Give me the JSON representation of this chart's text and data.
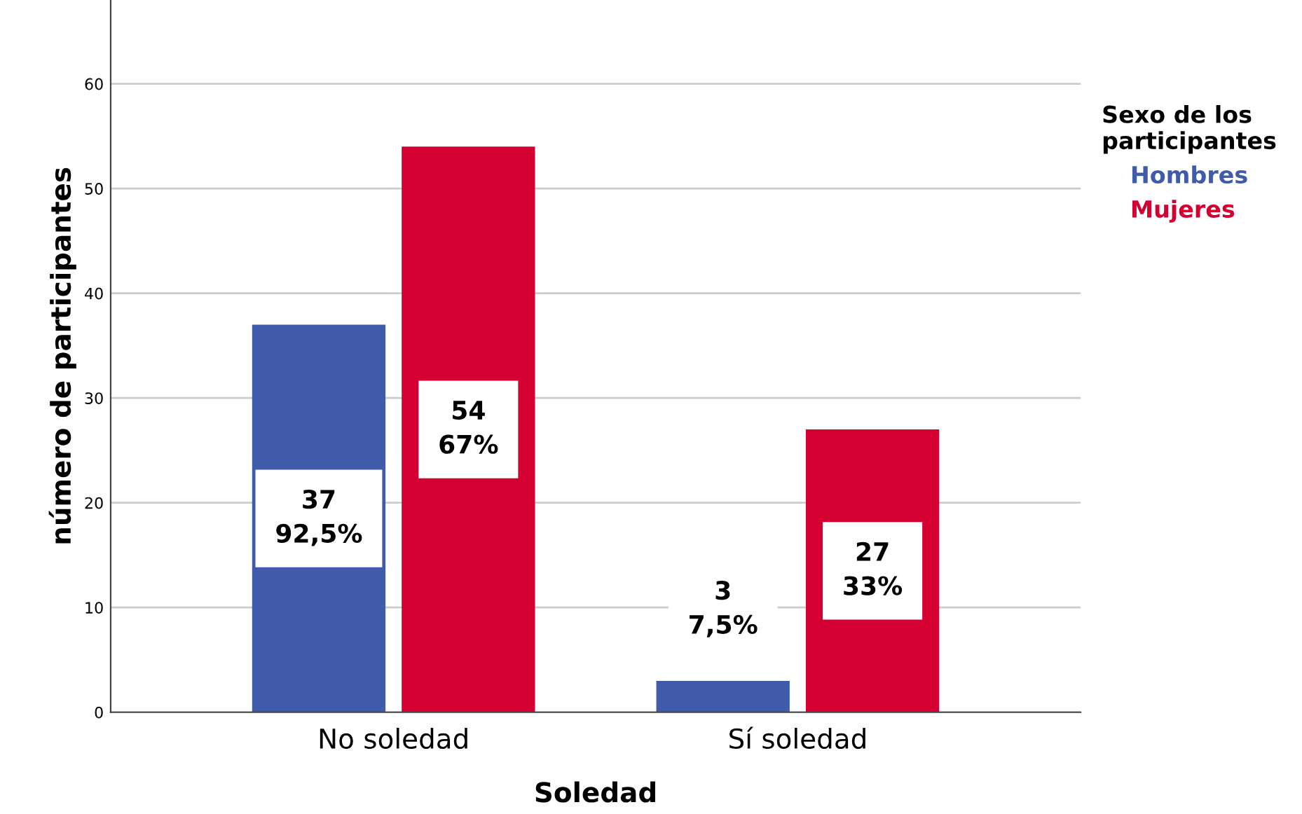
{
  "chart_data": {
    "type": "bar",
    "xlabel": "Soledad",
    "ylabel": "número de participantes",
    "legend_title": "Sexo de los participantes",
    "categories": [
      "No soledad",
      "Sí soledad"
    ],
    "series": [
      {
        "name": "Hombres",
        "color": "#3f5ba9",
        "values": [
          37,
          3
        ],
        "value_labels": [
          "37\n92,5%",
          "3\n7,5%"
        ]
      },
      {
        "name": "Mujeres",
        "color": "#d50032",
        "values": [
          54,
          27
        ],
        "value_labels": [
          "54\n67%",
          "27\n33%"
        ]
      }
    ],
    "ylim": [
      0,
      68
    ],
    "yticks": [
      0,
      10,
      20,
      30,
      40,
      50,
      60
    ],
    "grid": "y",
    "legend": "right"
  }
}
